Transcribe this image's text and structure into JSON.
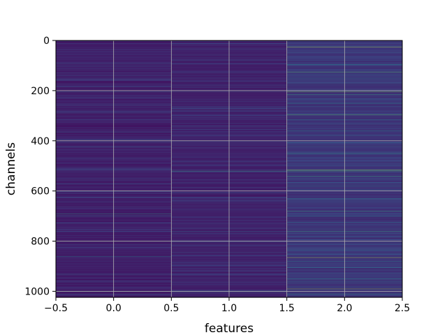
{
  "chart_data": {
    "type": "heatmap",
    "title": "",
    "xlabel": "features",
    "ylabel": "channels",
    "xlim": [
      -0.5,
      2.5
    ],
    "ylim": [
      1024,
      0
    ],
    "y_inverted": true,
    "grid": true,
    "colormap": "viridis",
    "x_ticks": [
      -0.5,
      0.0,
      0.5,
      1.0,
      1.5,
      2.0,
      2.5
    ],
    "x_tick_labels": [
      "−0.5",
      "0.0",
      "0.5",
      "1.0",
      "1.5",
      "2.0",
      "2.5"
    ],
    "y_ticks": [
      0,
      200,
      400,
      600,
      800,
      1000
    ],
    "y_tick_labels": [
      "0",
      "200",
      "400",
      "600",
      "800",
      "1000"
    ],
    "rows": 1024,
    "columns": [
      {
        "feature": 0,
        "base_value": 0.05,
        "highlights": [
          [
            12,
            0.25
          ],
          [
            45,
            0.2
          ],
          [
            130,
            0.2
          ],
          [
            205,
            0.3
          ],
          [
            320,
            0.22
          ],
          [
            366,
            0.3
          ],
          [
            400,
            0.45
          ],
          [
            470,
            0.2
          ],
          [
            550,
            0.22
          ],
          [
            640,
            0.2
          ],
          [
            690,
            0.55
          ],
          [
            700,
            0.35
          ],
          [
            760,
            0.25
          ],
          [
            800,
            0.6
          ],
          [
            860,
            0.45
          ],
          [
            930,
            0.3
          ],
          [
            1000,
            0.55
          ],
          [
            1015,
            0.3
          ]
        ]
      },
      {
        "feature": 1,
        "base_value": 0.06,
        "highlights": [
          [
            35,
            0.3
          ],
          [
            205,
            0.3
          ],
          [
            270,
            0.25
          ],
          [
            330,
            0.25
          ],
          [
            520,
            0.6
          ],
          [
            640,
            0.22
          ],
          [
            760,
            0.3
          ],
          [
            800,
            0.35
          ],
          [
            935,
            0.25
          ],
          [
            1000,
            0.4
          ]
        ]
      },
      {
        "feature": 2,
        "base_value": 0.12,
        "highlights": [
          [
            25,
            0.9
          ],
          [
            95,
            0.5
          ],
          [
            125,
            0.75
          ],
          [
            150,
            0.4
          ],
          [
            205,
            0.8
          ],
          [
            215,
            0.6
          ],
          [
            250,
            0.5
          ],
          [
            295,
            0.75
          ],
          [
            315,
            0.45
          ],
          [
            360,
            0.5
          ],
          [
            420,
            0.35
          ],
          [
            450,
            0.55
          ],
          [
            515,
            0.85
          ],
          [
            520,
            0.7
          ],
          [
            540,
            0.6
          ],
          [
            580,
            0.4
          ],
          [
            630,
            0.4
          ],
          [
            680,
            0.6
          ],
          [
            700,
            0.45
          ],
          [
            725,
            0.4
          ],
          [
            760,
            0.6
          ],
          [
            800,
            0.55
          ],
          [
            835,
            0.4
          ],
          [
            865,
            0.9
          ],
          [
            880,
            0.45
          ],
          [
            905,
            0.4
          ],
          [
            950,
            0.45
          ],
          [
            990,
            0.85
          ],
          [
            1010,
            0.5
          ]
        ]
      }
    ]
  }
}
